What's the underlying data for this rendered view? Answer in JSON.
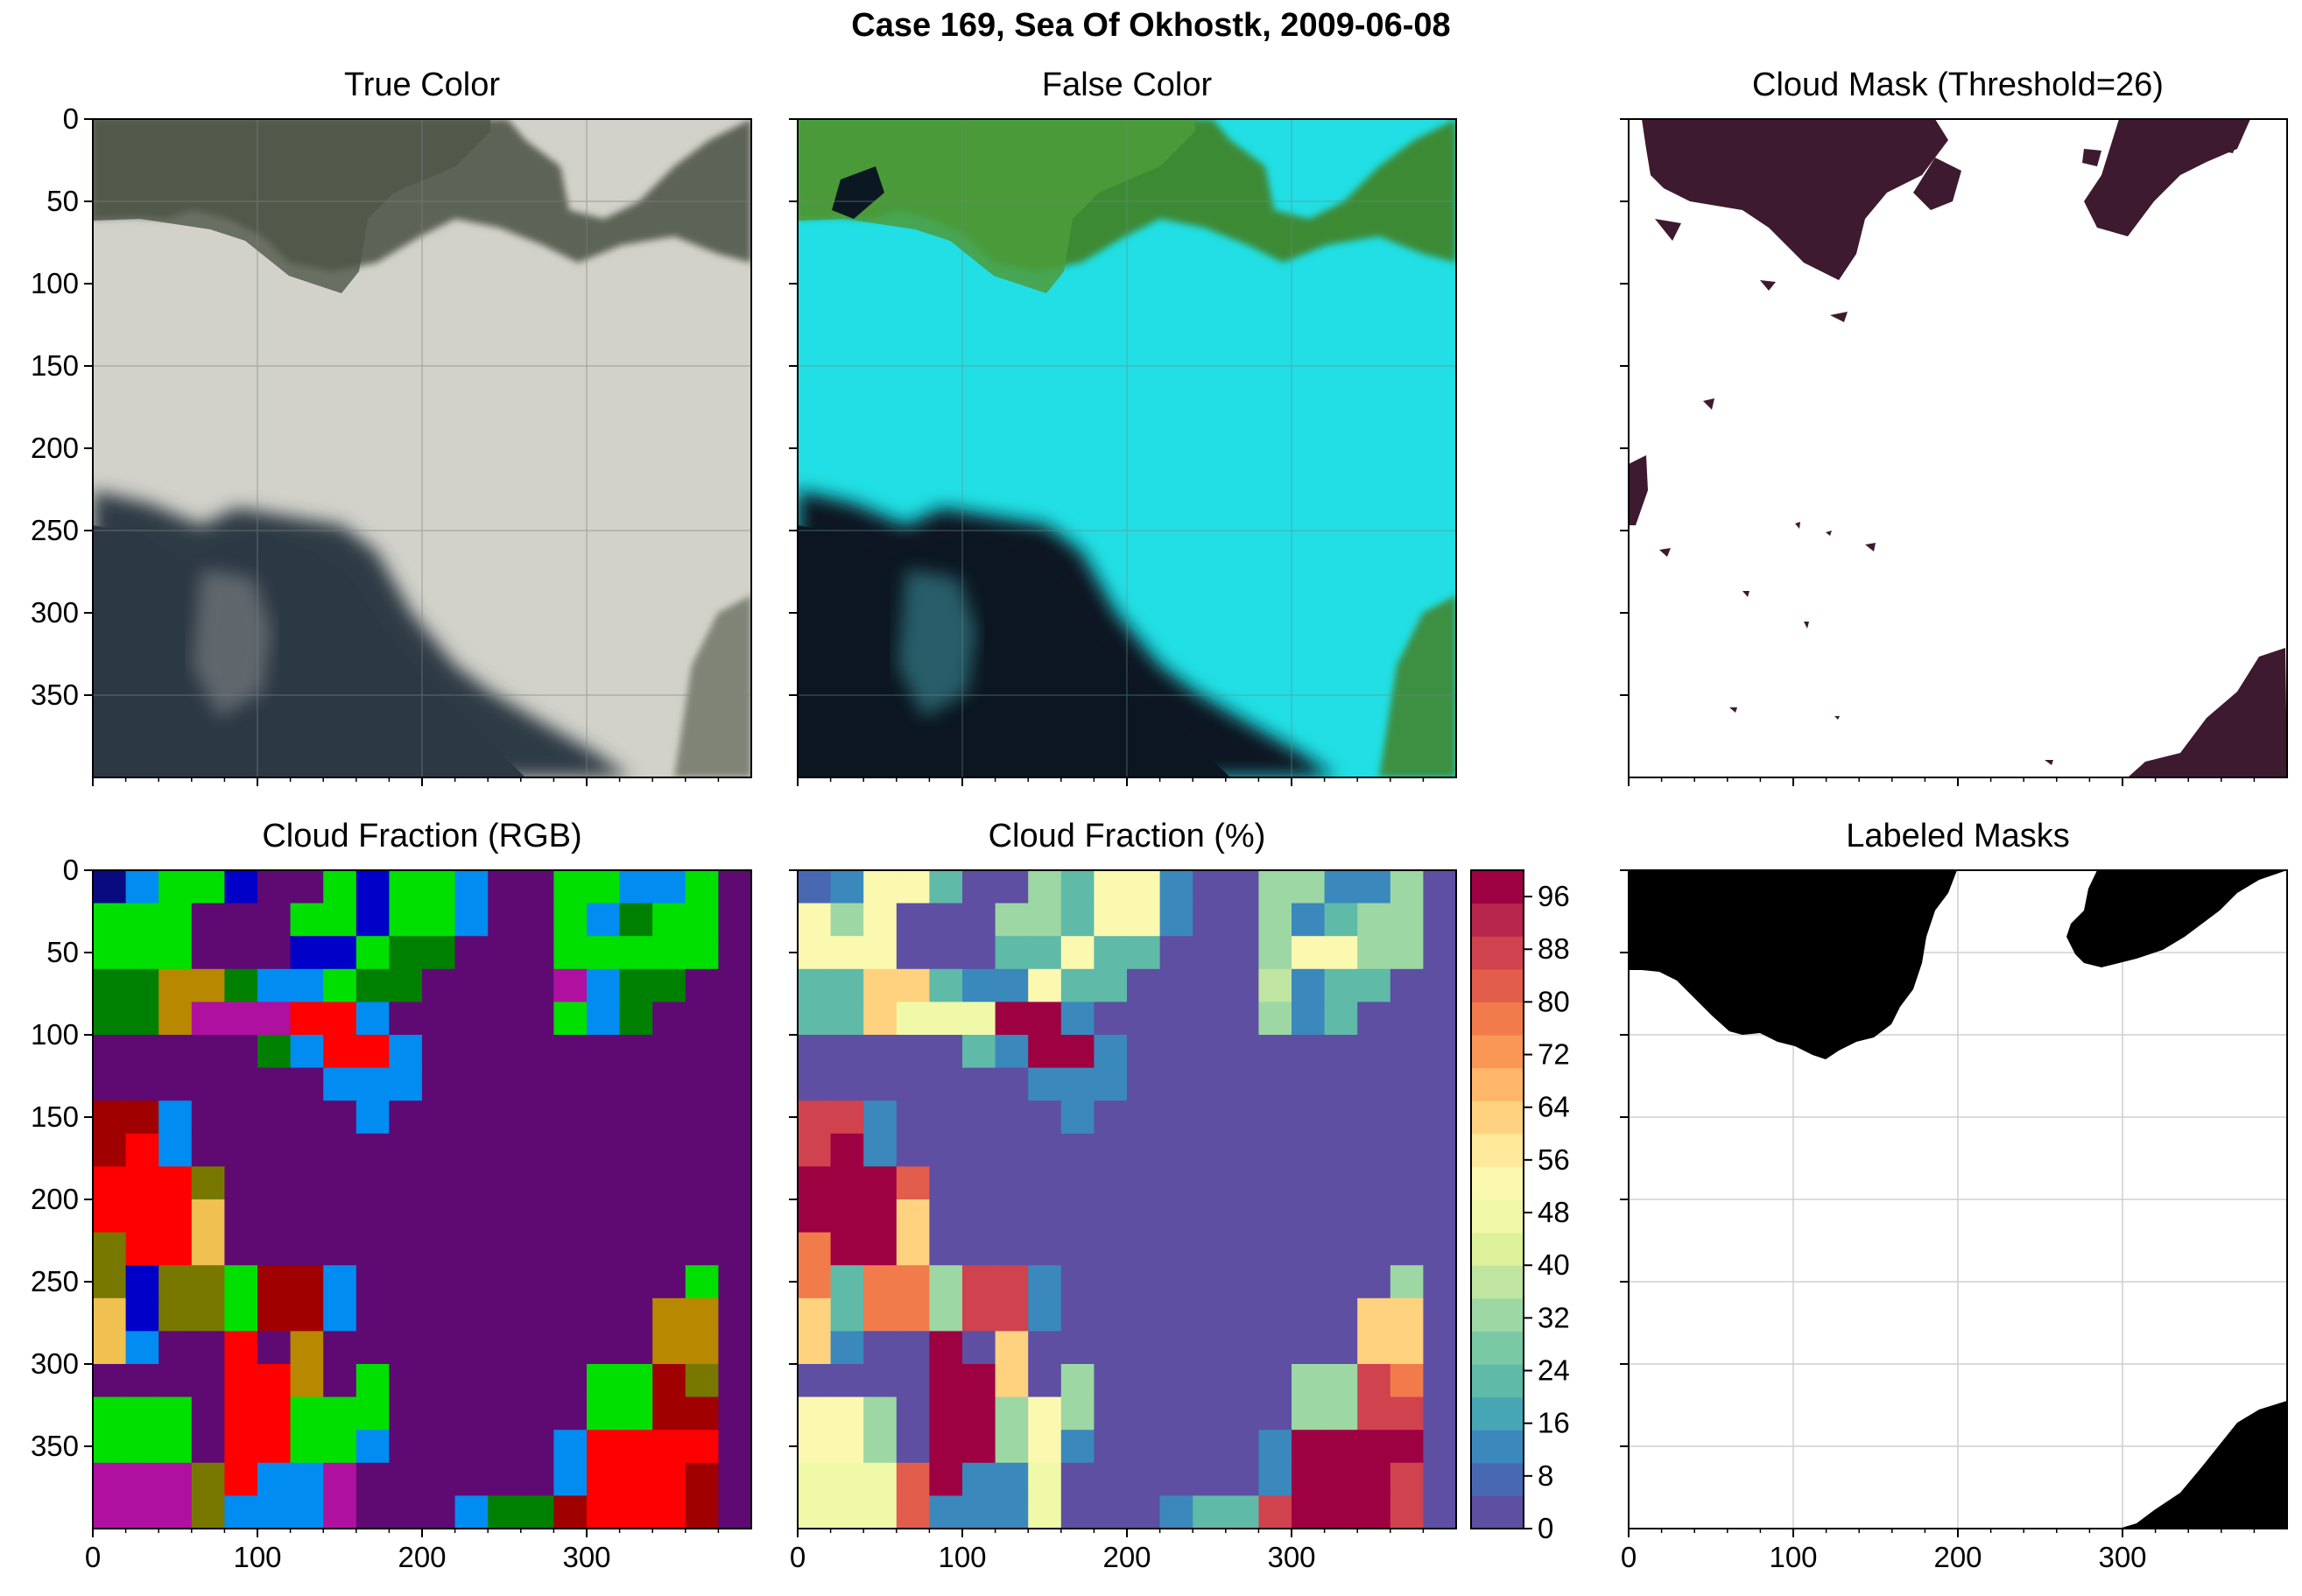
{
  "figure": {
    "suptitle": "Case 169, Sea Of Okhostk, 2009-06-08"
  },
  "panels": [
    {
      "title": "True Color"
    },
    {
      "title": "False Color"
    },
    {
      "title": "Cloud Mask (Threshold=26)"
    },
    {
      "title": "Cloud Fraction (RGB)"
    },
    {
      "title": "Cloud Fraction (%)"
    },
    {
      "title": "Labeled Masks"
    }
  ],
  "colors": {
    "cloud_mask": "#3d1a30",
    "labeled_mask": "#000000",
    "gray_cloud": "#d4d4cc",
    "cyan_cloud": "#22e0e6",
    "dark_ocean": "#2a3540",
    "land_green": "#4a8f3a",
    "viridis_purple": "#5f0a73"
  },
  "chart_data": [
    {
      "type": "heatmap",
      "panel": "True Color",
      "title": "True Color",
      "xlabel": "",
      "ylabel": "",
      "xlim": [
        0,
        400
      ],
      "ylim": [
        400,
        0
      ],
      "yticks": [
        0,
        50,
        100,
        150,
        200,
        250,
        300,
        350
      ],
      "xticks": [],
      "grid": true
    },
    {
      "type": "heatmap",
      "panel": "False Color",
      "title": "False Color",
      "xlim": [
        0,
        400
      ],
      "ylim": [
        400,
        0
      ],
      "xticks": [],
      "yticks": [],
      "grid": true
    },
    {
      "type": "heatmap",
      "panel": "Cloud Mask (Threshold=26)",
      "title": "Cloud Mask (Threshold=26)",
      "threshold": 26,
      "xlim": [
        0,
        400
      ],
      "ylim": [
        400,
        0
      ],
      "xticks": [],
      "yticks": [],
      "grid": false
    },
    {
      "type": "heatmap",
      "panel": "Cloud Fraction (RGB)",
      "title": "Cloud Fraction (RGB)",
      "xlim": [
        0,
        400
      ],
      "ylim": [
        400,
        0
      ],
      "xticks": [
        0,
        100,
        200,
        300
      ],
      "yticks": [
        0,
        50,
        100,
        150,
        200,
        250,
        300,
        350
      ],
      "grid": false
    },
    {
      "type": "heatmap",
      "panel": "Cloud Fraction (%)",
      "title": "Cloud Fraction (%)",
      "xlim": [
        0,
        400
      ],
      "ylim": [
        400,
        0
      ],
      "xticks": [
        0,
        100,
        200,
        300
      ],
      "yticks": [],
      "colorbar": {
        "min": 0,
        "max": 100,
        "ticks": [
          0,
          8,
          16,
          24,
          32,
          40,
          48,
          56,
          64,
          72,
          80,
          88,
          96
        ],
        "colors": [
          "#5e4fa2",
          "#4869b2",
          "#3b88bc",
          "#46a6b5",
          "#5fbaa8",
          "#79c9a4",
          "#9dd7a4",
          "#bfe5a0",
          "#dcf199",
          "#f0f9a8",
          "#fbf8b0",
          "#fee99b",
          "#fed27f",
          "#fdb66a",
          "#fa9757",
          "#f27b4b",
          "#e25d4b",
          "#d0424e",
          "#b8254d",
          "#9e0142"
        ],
        "grid": 20,
        "values": [
          [
            6,
            12,
            52,
            52,
            20,
            3,
            3,
            32,
            20,
            52,
            52,
            12,
            3,
            3,
            32,
            32,
            12,
            12,
            32,
            0
          ],
          [
            52,
            32,
            52,
            3,
            3,
            3,
            32,
            32,
            20,
            52,
            52,
            12,
            3,
            3,
            32,
            12,
            24,
            32,
            32,
            0
          ],
          [
            52,
            52,
            52,
            3,
            3,
            3,
            20,
            20,
            52,
            24,
            24,
            3,
            3,
            3,
            32,
            52,
            52,
            32,
            32,
            0
          ],
          [
            24,
            24,
            64,
            64,
            24,
            12,
            12,
            52,
            24,
            24,
            3,
            3,
            3,
            3,
            38,
            12,
            24,
            24,
            3,
            0
          ],
          [
            24,
            24,
            64,
            48,
            48,
            48,
            96,
            96,
            12,
            3,
            3,
            3,
            3,
            3,
            32,
            12,
            24,
            3,
            3,
            0
          ],
          [
            3,
            3,
            3,
            3,
            3,
            24,
            12,
            96,
            96,
            12,
            3,
            3,
            3,
            3,
            3,
            3,
            3,
            3,
            3,
            0
          ],
          [
            3,
            3,
            3,
            3,
            3,
            3,
            3,
            12,
            12,
            12,
            3,
            3,
            3,
            3,
            3,
            3,
            3,
            3,
            3,
            0
          ],
          [
            88,
            88,
            12,
            3,
            3,
            3,
            3,
            3,
            12,
            3,
            3,
            3,
            3,
            3,
            3,
            3,
            3,
            3,
            3,
            0
          ],
          [
            88,
            96,
            12,
            3,
            3,
            3,
            3,
            3,
            3,
            3,
            3,
            3,
            3,
            3,
            3,
            3,
            3,
            3,
            3,
            3
          ],
          [
            96,
            96,
            96,
            80,
            3,
            3,
            3,
            3,
            3,
            3,
            3,
            3,
            3,
            3,
            3,
            3,
            3,
            3,
            3,
            3
          ],
          [
            96,
            96,
            96,
            60,
            3,
            3,
            3,
            3,
            3,
            3,
            3,
            3,
            3,
            3,
            3,
            3,
            3,
            3,
            3,
            3
          ],
          [
            76,
            96,
            96,
            60,
            3,
            3,
            3,
            3,
            3,
            3,
            3,
            3,
            3,
            3,
            3,
            3,
            3,
            3,
            3,
            3
          ],
          [
            76,
            20,
            76,
            76,
            32,
            88,
            88,
            12,
            3,
            3,
            3,
            3,
            3,
            3,
            3,
            3,
            3,
            3,
            32,
            3
          ],
          [
            60,
            20,
            76,
            76,
            32,
            88,
            88,
            12,
            3,
            3,
            3,
            3,
            3,
            3,
            3,
            3,
            3,
            64,
            64,
            3
          ],
          [
            60,
            12,
            3,
            3,
            96,
            3,
            64,
            3,
            3,
            3,
            3,
            3,
            3,
            3,
            3,
            3,
            3,
            64,
            64,
            3
          ],
          [
            3,
            3,
            3,
            3,
            96,
            96,
            64,
            3,
            32,
            3,
            3,
            3,
            3,
            3,
            3,
            32,
            32,
            88,
            76,
            3
          ],
          [
            52,
            52,
            32,
            3,
            96,
            96,
            32,
            52,
            32,
            3,
            3,
            3,
            3,
            3,
            3,
            32,
            32,
            88,
            88,
            3
          ],
          [
            52,
            52,
            32,
            3,
            96,
            96,
            32,
            52,
            12,
            3,
            3,
            3,
            3,
            3,
            12,
            96,
            96,
            96,
            96,
            3
          ],
          [
            48,
            48,
            48,
            80,
            96,
            12,
            12,
            48,
            3,
            3,
            3,
            3,
            3,
            3,
            12,
            96,
            96,
            96,
            88,
            3
          ],
          [
            48,
            48,
            48,
            80,
            12,
            12,
            12,
            48,
            3,
            3,
            3,
            12,
            24,
            24,
            88,
            96,
            96,
            96,
            88,
            3
          ]
        ]
      }
    },
    {
      "type": "heatmap",
      "panel": "Labeled Masks",
      "title": "Labeled Masks",
      "xlim": [
        0,
        400
      ],
      "ylim": [
        400,
        0
      ],
      "xticks": [
        0,
        100,
        200,
        300
      ],
      "yticks": [],
      "grid": true
    }
  ]
}
